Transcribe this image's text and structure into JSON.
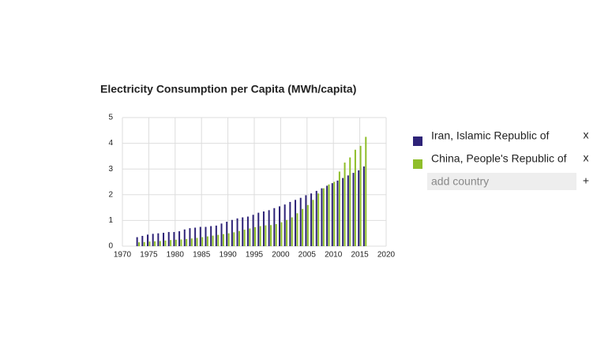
{
  "chart_data": {
    "type": "bar",
    "title": "Electricity Consumption per Capita (MWh/capita)",
    "x": [
      1973,
      1974,
      1975,
      1976,
      1977,
      1978,
      1979,
      1980,
      1981,
      1982,
      1983,
      1984,
      1985,
      1986,
      1987,
      1988,
      1989,
      1990,
      1991,
      1992,
      1993,
      1994,
      1995,
      1996,
      1997,
      1998,
      1999,
      2000,
      2001,
      2002,
      2003,
      2004,
      2005,
      2006,
      2007,
      2008,
      2009,
      2010,
      2011,
      2012,
      2013,
      2014,
      2015,
      2016
    ],
    "series": [
      {
        "name": "Iran, Islamic Republic of",
        "color": "#2e2378",
        "values": [
          0.35,
          0.4,
          0.45,
          0.48,
          0.5,
          0.52,
          0.55,
          0.55,
          0.58,
          0.65,
          0.7,
          0.72,
          0.75,
          0.75,
          0.78,
          0.8,
          0.88,
          0.95,
          1.02,
          1.08,
          1.12,
          1.15,
          1.22,
          1.3,
          1.35,
          1.4,
          1.48,
          1.55,
          1.62,
          1.72,
          1.8,
          1.88,
          1.98,
          2.05,
          2.15,
          2.25,
          2.35,
          2.45,
          2.55,
          2.65,
          2.75,
          2.85,
          2.95,
          3.1
        ]
      },
      {
        "name": "China, People's Republic of",
        "color": "#8fbe2a",
        "values": [
          0.15,
          0.16,
          0.18,
          0.19,
          0.2,
          0.22,
          0.24,
          0.25,
          0.26,
          0.28,
          0.3,
          0.32,
          0.35,
          0.38,
          0.41,
          0.44,
          0.47,
          0.5,
          0.54,
          0.59,
          0.64,
          0.69,
          0.74,
          0.78,
          0.81,
          0.82,
          0.86,
          0.93,
          1.02,
          1.12,
          1.28,
          1.45,
          1.6,
          1.8,
          2.05,
          2.25,
          2.4,
          2.5,
          2.9,
          3.25,
          3.45,
          3.75,
          3.9,
          4.25
        ]
      }
    ],
    "xlim": [
      1970,
      2020
    ],
    "xticks": [
      1970,
      1975,
      1980,
      1985,
      1990,
      1995,
      2000,
      2005,
      2010,
      2015,
      2020
    ],
    "ylim": [
      0,
      5
    ],
    "yticks": [
      0,
      1,
      2,
      3,
      4,
      5
    ],
    "grid": true,
    "remove_label": "x",
    "add_placeholder": "add country",
    "add_label": "+"
  }
}
